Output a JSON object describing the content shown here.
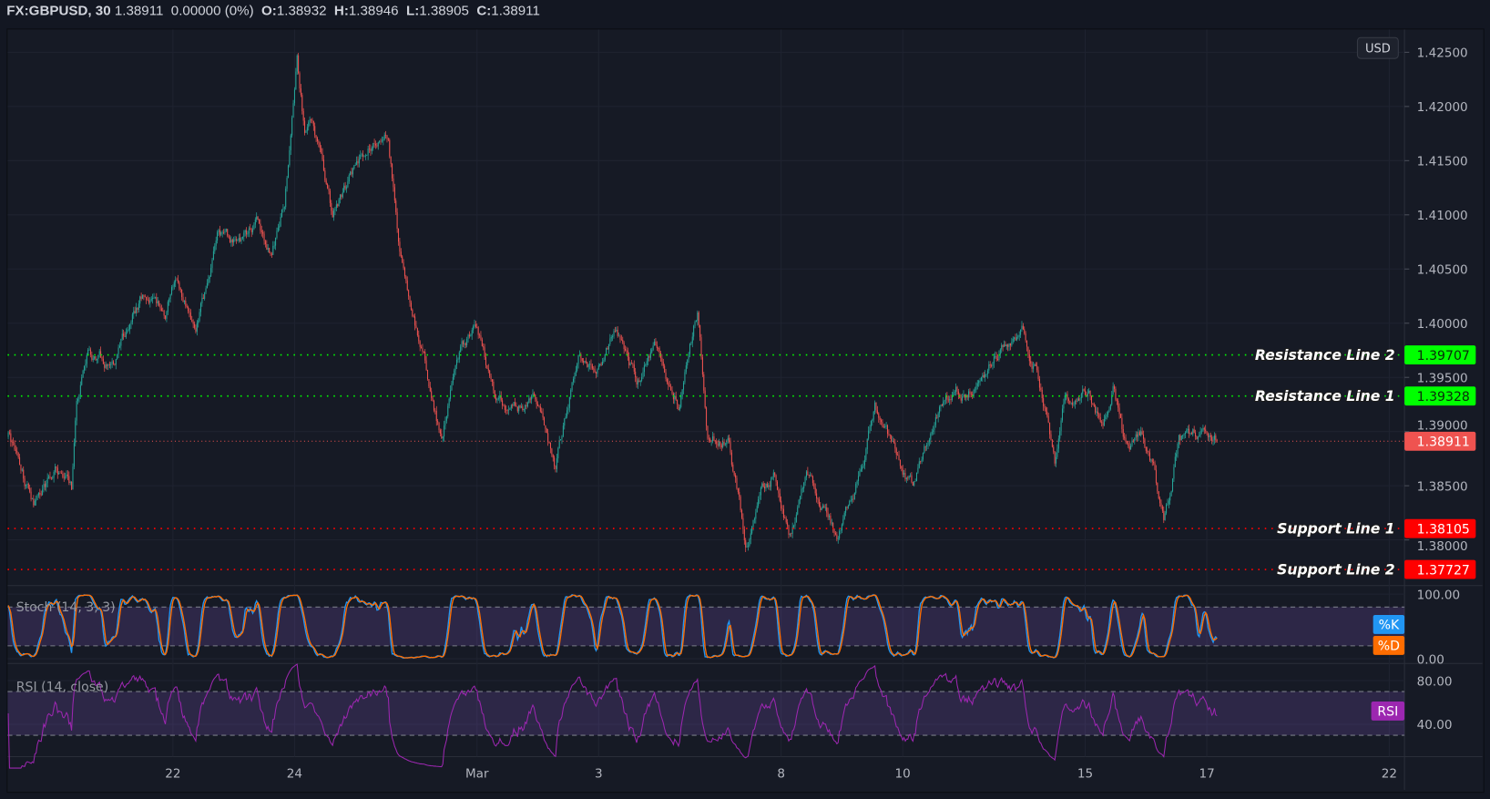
{
  "header": {
    "symbol": "FX:GBPUSD, 30",
    "last": "1.38911",
    "change": "0.00000 (0%)",
    "o_label": "O:",
    "o": "1.38932",
    "h_label": "H:",
    "h": "1.38946",
    "l_label": "L:",
    "l": "1.38905",
    "c_label": "C:",
    "c": "1.38911"
  },
  "currency_button": "USD",
  "colors": {
    "up": "#26a69a",
    "down": "#ef5350",
    "resistance": "#00ff00",
    "support": "#ff0000",
    "last_price": "#ef5350",
    "stoch_k": "#2196f3",
    "stoch_d": "#ff6d00",
    "rsi": "#9c27b0"
  },
  "indicators": {
    "stoch": {
      "label": "Stoch (14, 3, 3)",
      "k_label": "%K",
      "d_label": "%D",
      "ticks": [
        "100.00",
        "0.00"
      ],
      "bands": [
        80,
        20
      ]
    },
    "rsi": {
      "label": "RSI (14, close)",
      "badge": "RSI",
      "ticks": [
        "80.00",
        "40.00"
      ],
      "bands": [
        70,
        30
      ]
    }
  },
  "chart_data": {
    "type": "candlestick",
    "title": "FX:GBPUSD, 30",
    "ylabel": "",
    "ylim": [
      1.3755,
      1.4265
    ],
    "grid": true,
    "price_ticks": [
      "1.42500",
      "1.42000",
      "1.41500",
      "1.41000",
      "1.40500",
      "1.40000",
      "1.39500",
      "1.39000",
      "1.38500",
      "1.38000"
    ],
    "time_ticks": [
      {
        "label": "22",
        "date": "Feb 22"
      },
      {
        "label": "24",
        "date": "Feb 24"
      },
      {
        "label": "Mar",
        "date": "Mar 1"
      },
      {
        "label": "3",
        "date": "Mar 3"
      },
      {
        "label": "8",
        "date": "Mar 8"
      },
      {
        "label": "10",
        "date": "Mar 10"
      },
      {
        "label": "15",
        "date": "Mar 15"
      },
      {
        "label": "17",
        "date": "Mar 17"
      },
      {
        "label": "22",
        "date": "Mar 22"
      }
    ],
    "horizontal_lines": [
      {
        "label": "Resistance Line 2",
        "price": "1.39707",
        "kind": "resistance"
      },
      {
        "label": "Resistance Line 1",
        "price": "1.39328",
        "kind": "resistance"
      },
      {
        "label": "",
        "price": "1.38911",
        "kind": "last_price"
      },
      {
        "label": "Support Line 1",
        "price": "1.38105",
        "kind": "support"
      },
      {
        "label": "Support Line 2",
        "price": "1.37727",
        "kind": "support"
      }
    ],
    "close_path": [
      [
        "Feb 17 07:00",
        1.3895
      ],
      [
        "Feb 17 17:00",
        1.3833
      ],
      [
        "Feb 18 02:00",
        1.3868
      ],
      [
        "Feb 18 08:00",
        1.3847
      ],
      [
        "Feb 18 10:00",
        1.393
      ],
      [
        "Feb 18 15:00",
        1.3974
      ],
      [
        "Feb 19 01:00",
        1.3961
      ],
      [
        "Feb 19 12:00",
        1.4026
      ],
      [
        "Feb 19 21:00",
        1.4009
      ],
      [
        "Feb 22 01:00",
        1.4044
      ],
      [
        "Feb 22 09:00",
        1.3987
      ],
      [
        "Feb 22 18:00",
        1.4079
      ],
      [
        "Feb 23 01:00",
        1.407
      ],
      [
        "Feb 23 09:00",
        1.4092
      ],
      [
        "Feb 23 15:00",
        1.4061
      ],
      [
        "Feb 23 20:00",
        1.411
      ],
      [
        "Feb 24 01:00",
        1.4237
      ],
      [
        "Feb 24 04:00",
        1.4175
      ],
      [
        "Feb 24 07:00",
        1.4193
      ],
      [
        "Feb 24 15:00",
        1.4097
      ],
      [
        "Feb 24 23:00",
        1.414
      ],
      [
        "Feb 25 08:00",
        1.4171
      ],
      [
        "Feb 25 13:00",
        1.4175
      ],
      [
        "Feb 25 17:00",
        1.4079
      ],
      [
        "Feb 25 21:00",
        1.4018
      ],
      [
        "Feb 26 03:00",
        1.3974
      ],
      [
        "Feb 26 10:00",
        1.3895
      ],
      [
        "Feb 26 16:00",
        1.3965
      ],
      [
        "Feb 26 23:00",
        1.3996
      ],
      [
        "Mar 1 07:00",
        1.3939
      ],
      [
        "Mar 1 14:00",
        1.3921
      ],
      [
        "Mar 1 23:00",
        1.393
      ],
      [
        "Mar 2 07:00",
        1.3868
      ],
      [
        "Mar 2 16:00",
        1.3969
      ],
      [
        "Mar 3 00:00",
        1.3961
      ],
      [
        "Mar 3 07:00",
        1.3996
      ],
      [
        "Mar 3 15:00",
        1.3947
      ],
      [
        "Mar 3 22:00",
        1.3974
      ],
      [
        "Mar 4 08:00",
        1.393
      ],
      [
        "Mar 4 15:00",
        1.4009
      ],
      [
        "Mar 4 19:00",
        1.3895
      ],
      [
        "Mar 5 03:00",
        1.3895
      ],
      [
        "Mar 5 10:00",
        1.3798
      ],
      [
        "Mar 5 16:00",
        1.3842
      ],
      [
        "Mar 5 21:00",
        1.386
      ],
      [
        "Mar 8 03:00",
        1.3807
      ],
      [
        "Mar 8 10:00",
        1.3851
      ],
      [
        "Mar 8 22:00",
        1.3807
      ],
      [
        "Mar 9 05:00",
        1.3842
      ],
      [
        "Mar 9 13:00",
        1.3921
      ],
      [
        "Mar 9 20:00",
        1.3886
      ],
      [
        "Mar 10 04:00",
        1.3851
      ],
      [
        "Mar 10 13:00",
        1.3921
      ],
      [
        "Mar 10 19:00",
        1.393
      ],
      [
        "Mar 11 06:00",
        1.3947
      ],
      [
        "Mar 11 17:00",
        1.3982
      ],
      [
        "Mar 11 23:00",
        1.3996
      ],
      [
        "Mar 12 05:00",
        1.3956
      ],
      [
        "Mar 12 12:00",
        1.3868
      ],
      [
        "Mar 12 16:00",
        1.393
      ],
      [
        "Mar 15 01:00",
        1.3939
      ],
      [
        "Mar 15 07:00",
        1.3912
      ],
      [
        "Mar 15 11:00",
        1.3939
      ],
      [
        "Mar 15 16:00",
        1.3886
      ],
      [
        "Mar 15 22:00",
        1.3899
      ],
      [
        "Mar 16 03:00",
        1.3868
      ],
      [
        "Mar 16 07:00",
        1.3811
      ],
      [
        "Mar 16 13:00",
        1.389
      ],
      [
        "Mar 16 22:00",
        1.3899
      ],
      [
        "Mar 17 04:00",
        1.38911
      ]
    ]
  }
}
